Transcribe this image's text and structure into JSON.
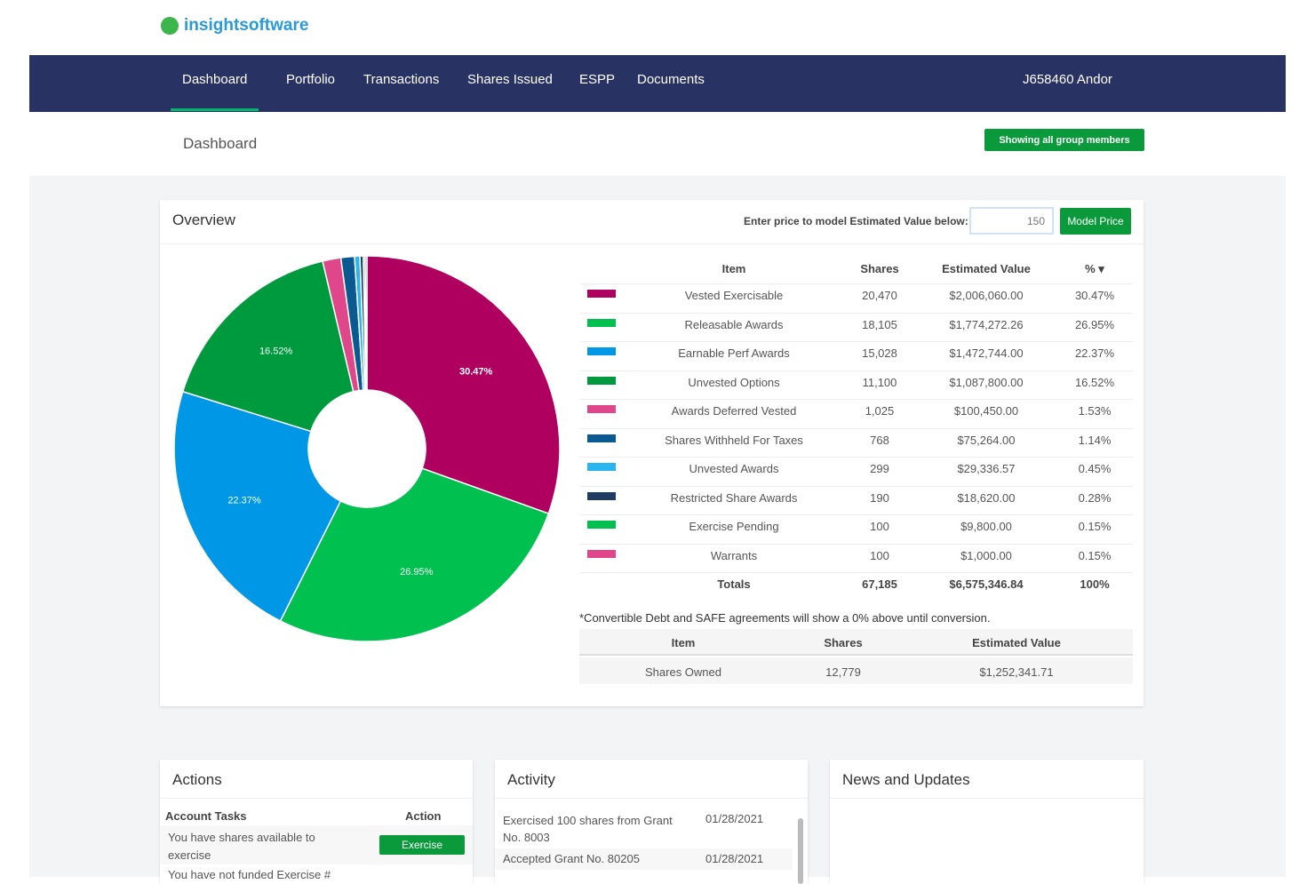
{
  "logo": "insightsoftware",
  "nav": {
    "items": [
      "Dashboard",
      "Portfolio",
      "Transactions",
      "Shares Issued",
      "ESPP",
      "Documents"
    ],
    "user": "J658460 Andor"
  },
  "page_title": "Dashboard",
  "group_button": "Showing all group members",
  "overview": {
    "title": "Overview",
    "prompt": "Enter price to model Estimated Value below:",
    "price_input": "150",
    "model_button": "Model Price"
  },
  "chart_data": {
    "type": "pie",
    "categories": [
      "Vested Exercisable",
      "Releasable Awards",
      "Earnable Perf Awards",
      "Unvested Options",
      "Awards Deferred Vested",
      "Shares Withheld For Taxes",
      "Unvested Awards",
      "Restricted Share Awards",
      "Exercise Pending",
      "Warrants"
    ],
    "values": [
      30.47,
      26.95,
      22.37,
      16.52,
      1.53,
      1.14,
      0.45,
      0.28,
      0.15,
      0.15
    ],
    "value_labels": [
      "30.47%",
      "26.95%",
      "22.37%",
      "16.52%",
      null,
      null,
      null,
      null,
      null,
      null
    ],
    "colors": [
      "#b0005f",
      "#00c04f",
      "#0097e6",
      "#009a3e",
      "#e0468a",
      "#0a5a91",
      "#29b6f0",
      "#1f3c63",
      "#00c04f",
      "#e0468a"
    ]
  },
  "holdings": {
    "columns": [
      "Item",
      "Shares",
      "Estimated Value",
      "% ▾"
    ],
    "rows": [
      [
        "20,470",
        "$2,006,060.00",
        "30.47%"
      ],
      [
        "18,105",
        "$1,774,272.26",
        "26.95%"
      ],
      [
        "15,028",
        "$1,472,744.00",
        "22.37%"
      ],
      [
        "11,100",
        "$1,087,800.00",
        "16.52%"
      ],
      [
        "1,025",
        "$100,450.00",
        "1.53%"
      ],
      [
        "768",
        "$75,264.00",
        "1.14%"
      ],
      [
        "299",
        "$29,336.57",
        "0.45%"
      ],
      [
        "190",
        "$18,620.00",
        "0.28%"
      ],
      [
        "100",
        "$9,800.00",
        "0.15%"
      ],
      [
        "100",
        "$1,000.00",
        "0.15%"
      ]
    ],
    "totals": [
      "Totals",
      "67,185",
      "$6,575,346.84",
      "100%"
    ]
  },
  "note": "*Convertible Debt and SAFE agreements will show a 0% above until conversion.",
  "owned": {
    "columns": [
      "Item",
      "Shares",
      "Estimated Value"
    ],
    "row": [
      "Shares Owned",
      "12,779",
      "$1,252,341.71"
    ]
  },
  "actions": {
    "title": "Actions",
    "columns": [
      "Account Tasks",
      "Action"
    ],
    "rows": [
      {
        "task": "You have shares available to exercise",
        "button": "Exercise"
      },
      {
        "task": "You have not funded Exercise #"
      }
    ]
  },
  "activity": {
    "title": "Activity",
    "rows": [
      {
        "text": "Exercised 100 shares from Grant No. 8003",
        "date": "01/28/2021"
      },
      {
        "text": "Accepted Grant No. 80205",
        "date": "01/28/2021"
      }
    ]
  },
  "news": {
    "title": "News and Updates"
  }
}
